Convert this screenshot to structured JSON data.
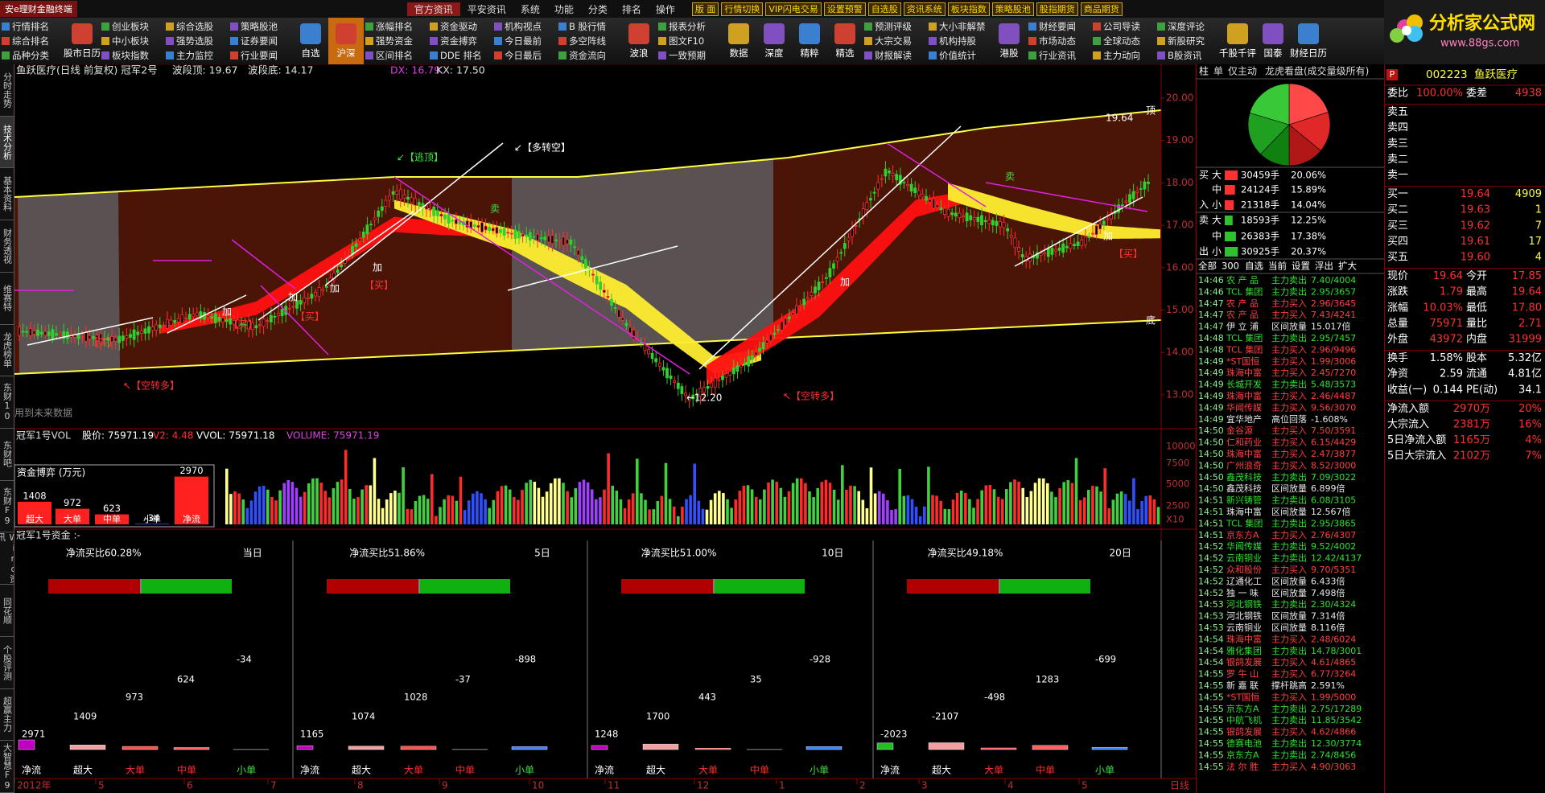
{
  "title_bar": {
    "app": "安e理财金融终端",
    "menu": [
      "官方资讯",
      "平安资讯",
      "系统",
      "功能",
      "分类",
      "排名",
      "操作"
    ],
    "buttons": [
      "版 面",
      "行情切换",
      "VIP闪电交易",
      "设置预警",
      "自选股",
      "资讯系统",
      "板块指数",
      "策略股池",
      "股指期货",
      "商品期货"
    ]
  },
  "logo": {
    "name": "分析家公式网",
    "url": "www.88gs.com"
  },
  "toolbar": [
    [
      "行情排名",
      "综合排名",
      "品种分类"
    ],
    "股市日历",
    [
      "创业板块",
      "中小板块",
      "板块指数"
    ],
    [
      "综合选股",
      "强势选股",
      "主力监控"
    ],
    [
      "策略股池",
      "证券要闻",
      "行业要闻"
    ],
    "自选",
    "沪深",
    [
      "涨幅排名",
      "强势资金",
      "区间排名"
    ],
    [
      "资金驱动",
      "资金搏弈",
      "DDE 排名"
    ],
    [
      "机构视点",
      "今日最前",
      "今日最后"
    ],
    [
      "B 股行情",
      "多空阵线",
      "资金流向"
    ],
    "波浪",
    [
      "报表分析",
      "图文F10",
      "一致预期"
    ],
    "数据",
    "深度",
    "精粹",
    "精选",
    [
      "预测评级",
      "大宗交易",
      "财报解读"
    ],
    [
      "大小非解禁",
      "机构持股",
      "价值统计"
    ],
    "港股",
    [
      "财经要闻",
      "市场动态",
      "行业资讯"
    ],
    [
      "公司导读",
      "全球动态",
      "主力动向"
    ],
    [
      "深度评论",
      "新股研究",
      "B股资讯"
    ],
    "千股千评",
    "国泰",
    "财经日历"
  ],
  "left_tabs": [
    "分时走势",
    "技术分析",
    "基本资料",
    "财务透视",
    "维赛特",
    "龙虎榜单",
    "东财10",
    "东财吧",
    "东财F9",
    "Wind资讯",
    "同花顺",
    "个股评测",
    "超赢主力",
    "大智慧F9"
  ],
  "price_chart": {
    "title": "鱼跃医疗(日线 前复权) 冠军2号",
    "band_top": "波段顶: 19.67",
    "band_bottom": "波段底: 14.17",
    "dx": "DX: 16.79",
    "kx": "KX: 17.50",
    "axis": [
      "20.00",
      "19.00",
      "18.00",
      "17.00",
      "16.00",
      "15.00",
      "14.00",
      "13.00"
    ],
    "annotations": [
      "↙【逃顶】",
      "↙【多转空】",
      "↖【空转多】",
      "↖【空转多】",
      "←12.20",
      "用到未来数据",
      "19.64",
      "顶",
      "底",
      "卖",
      "卖",
      "【买】",
      "【买】",
      "【买】",
      "【买】",
      "【买】",
      "加",
      "加",
      "加",
      "加",
      "加",
      "加"
    ]
  },
  "volume_panel": {
    "title": "冠军1号VOL",
    "items": [
      "股价: 75971.19",
      "V2: 4.48",
      "VVOL: 75971.18",
      "VOLUME: 75971.19"
    ],
    "axis": [
      "10000",
      "7500",
      "5000",
      "2500",
      "X10"
    ]
  },
  "fund_box": {
    "title": "资金博弈 (万元)",
    "categories": [
      "超大",
      "大单",
      "中单",
      "小单",
      "净流"
    ],
    "values": [
      1408,
      972,
      623,
      -34,
      2970
    ]
  },
  "fund_panel": {
    "title": "冠军1号资金 :-",
    "categories": [
      "净流",
      "超大",
      "大单",
      "中单",
      "小单"
    ],
    "panels": [
      {
        "ratio": "净流买比60.28%",
        "period": "当日",
        "values": [
          2971,
          1409,
          973,
          624,
          -34
        ]
      },
      {
        "ratio": "净流买比51.86%",
        "period": "5日",
        "values": [
          1165,
          1074,
          1028,
          -37,
          -898
        ]
      },
      {
        "ratio": "净流买比51.00%",
        "period": "10日",
        "values": [
          1248,
          1700,
          443,
          35,
          -928
        ]
      },
      {
        "ratio": "净流买比49.18%",
        "period": "20日",
        "values": [
          -2023,
          -2107,
          -498,
          1283,
          -699
        ]
      }
    ]
  },
  "date_axis": [
    "2012年",
    "5",
    "6",
    "7",
    "8",
    "9",
    "10",
    "11",
    "12",
    "1",
    "2",
    "3",
    "4",
    "5",
    "日线"
  ],
  "flow_panel": {
    "tabs": [
      "柱",
      "单",
      "仅主动",
      "龙虎看盘(成交量级所有)"
    ],
    "buy_label": [
      "买",
      "入"
    ],
    "sell_label": [
      "卖",
      "出"
    ],
    "buy": {
      "sizes": [
        "大",
        "中",
        "小"
      ],
      "vols": [
        "30459手",
        "24124手",
        "21318手"
      ],
      "values": [
        20.06,
        15.89,
        14.04
      ],
      "value_labels": [
        "20.06%",
        "15.89%",
        "14.04%"
      ]
    },
    "sell": {
      "sizes": [
        "大",
        "中",
        "小"
      ],
      "vols": [
        "18593手",
        "26383手",
        "30925手"
      ],
      "values": [
        12.25,
        17.38,
        20.37
      ],
      "value_labels": [
        "12.25%",
        "17.38%",
        "20.37%"
      ]
    },
    "list_tabs": [
      "全部",
      "300",
      "自选",
      "当前",
      "设置",
      "浮出",
      "扩大"
    ],
    "ticks": [
      {
        "t": "14:46",
        "n": "农 产 品",
        "k": "主力卖出",
        "d": "7.40/4004",
        "c": "#30e030"
      },
      {
        "t": "14:46",
        "n": "TCL 集团",
        "k": "主力卖出",
        "d": "2.95/3657",
        "c": "#30e030"
      },
      {
        "t": "14:47",
        "n": "农 产 品",
        "k": "主力买入",
        "d": "2.96/3645",
        "c": "#ff4040"
      },
      {
        "t": "14:47",
        "n": "农 产 品",
        "k": "主力买入",
        "d": "7.43/4241",
        "c": "#ff4040"
      },
      {
        "t": "14:47",
        "n": "伊 立 浦",
        "k": "区间放量",
        "d": "15.017倍",
        "c": "#e8e8e8"
      },
      {
        "t": "14:48",
        "n": "TCL 集团",
        "k": "主力卖出",
        "d": "2.95/7457",
        "c": "#30e030"
      },
      {
        "t": "14:48",
        "n": "TCL 集团",
        "k": "主力买入",
        "d": "2.96/9496",
        "c": "#ff4040"
      },
      {
        "t": "14:49",
        "n": "*ST国恒",
        "k": "主力买入",
        "d": "1.99/3006",
        "c": "#ff4040"
      },
      {
        "t": "14:49",
        "n": "珠海中富",
        "k": "主力买入",
        "d": "2.45/7270",
        "c": "#ff4040"
      },
      {
        "t": "14:49",
        "n": "长城开发",
        "k": "主力卖出",
        "d": "5.48/3573",
        "c": "#30e030"
      },
      {
        "t": "14:49",
        "n": "珠海中富",
        "k": "主力买入",
        "d": "2.46/4487",
        "c": "#ff4040"
      },
      {
        "t": "14:49",
        "n": "华闻传媒",
        "k": "主力买入",
        "d": "9.56/3070",
        "c": "#ff4040"
      },
      {
        "t": "14:49",
        "n": "宜华地产",
        "k": "高位回落",
        "d": "-1.608%",
        "c": "#e8e8e8"
      },
      {
        "t": "14:50",
        "n": "金谷源",
        "k": "主力买入",
        "d": "7.50/3591",
        "c": "#ff4040"
      },
      {
        "t": "14:50",
        "n": "仁和药业",
        "k": "主力买入",
        "d": "6.15/4429",
        "c": "#ff4040"
      },
      {
        "t": "14:50",
        "n": "珠海中富",
        "k": "主力买入",
        "d": "2.47/3877",
        "c": "#ff4040"
      },
      {
        "t": "14:50",
        "n": "广州浪奇",
        "k": "主力买入",
        "d": "8.52/3000",
        "c": "#ff4040"
      },
      {
        "t": "14:50",
        "n": "鑫茂科技",
        "k": "主力卖出",
        "d": "7.09/3022",
        "c": "#30e030"
      },
      {
        "t": "14:50",
        "n": "鑫茂科技",
        "k": "区间放量",
        "d": "6.899倍",
        "c": "#e8e8e8"
      },
      {
        "t": "14:51",
        "n": "新兴铸管",
        "k": "主力卖出",
        "d": "6.08/3105",
        "c": "#30e030"
      },
      {
        "t": "14:51",
        "n": "珠海中富",
        "k": "区间放量",
        "d": "12.567倍",
        "c": "#e8e8e8"
      },
      {
        "t": "14:51",
        "n": "TCL 集团",
        "k": "主力卖出",
        "d": "2.95/3865",
        "c": "#30e030"
      },
      {
        "t": "14:51",
        "n": "京东方A",
        "k": "主力买入",
        "d": "2.76/4307",
        "c": "#ff4040"
      },
      {
        "t": "14:52",
        "n": "华闻传媒",
        "k": "主力卖出",
        "d": "9.52/4002",
        "c": "#30e030"
      },
      {
        "t": "14:52",
        "n": "云南铜业",
        "k": "主力卖出",
        "d": "12.42/4137",
        "c": "#30e030"
      },
      {
        "t": "14:52",
        "n": "众和股份",
        "k": "主力买入",
        "d": "9.70/5351",
        "c": "#ff4040"
      },
      {
        "t": "14:52",
        "n": "辽通化工",
        "k": "区间放量",
        "d": "6.433倍",
        "c": "#e8e8e8"
      },
      {
        "t": "14:52",
        "n": "独 一 味",
        "k": "区间放量",
        "d": "7.498倍",
        "c": "#e8e8e8"
      },
      {
        "t": "14:53",
        "n": "河北钢铁",
        "k": "主力卖出",
        "d": "2.30/4324",
        "c": "#30e030"
      },
      {
        "t": "14:53",
        "n": "河北钢铁",
        "k": "区间放量",
        "d": "7.314倍",
        "c": "#e8e8e8"
      },
      {
        "t": "14:53",
        "n": "云南铜业",
        "k": "区间放量",
        "d": "8.116倍",
        "c": "#e8e8e8"
      },
      {
        "t": "14:54",
        "n": "珠海中富",
        "k": "主力买入",
        "d": "2.48/6024",
        "c": "#ff4040"
      },
      {
        "t": "14:54",
        "n": "雅化集团",
        "k": "主力卖出",
        "d": "14.78/3001",
        "c": "#30e030"
      },
      {
        "t": "14:54",
        "n": "银鸽发展",
        "k": "主力买入",
        "d": "4.61/4865",
        "c": "#ff4040"
      },
      {
        "t": "14:55",
        "n": "罗 牛 山",
        "k": "主力买入",
        "d": "6.77/3264",
        "c": "#ff4040"
      },
      {
        "t": "14:55",
        "n": "新 嘉 联",
        "k": "撑杆跳高",
        "d": "2.591%",
        "c": "#e8e8e8"
      },
      {
        "t": "14:55",
        "n": "*ST国恒",
        "k": "主力买入",
        "d": "1.99/5000",
        "c": "#ff4040"
      },
      {
        "t": "14:55",
        "n": "京东方A",
        "k": "主力卖出",
        "d": "2.75/17289",
        "c": "#30e030"
      },
      {
        "t": "14:55",
        "n": "中航飞机",
        "k": "主力卖出",
        "d": "11.85/3542",
        "c": "#30e030"
      },
      {
        "t": "14:55",
        "n": "银鸽发展",
        "k": "主力买入",
        "d": "4.62/4866",
        "c": "#ff4040"
      },
      {
        "t": "14:55",
        "n": "德赛电池",
        "k": "主力卖出",
        "d": "12.30/3774",
        "c": "#30e030"
      },
      {
        "t": "14:55",
        "n": "京东方A",
        "k": "主力卖出",
        "d": "2.74/8456",
        "c": "#30e030"
      },
      {
        "t": "14:55",
        "n": "法 尔 胜",
        "k": "主力买入",
        "d": "4.90/3063",
        "c": "#ff4040"
      }
    ]
  },
  "quote": {
    "tag": "P",
    "code": "002223",
    "name": "鱼跃医疗",
    "sections": [
      {
        "color": "#ff3030",
        "rows": [
          [
            "委比",
            "100.00%",
            "委差",
            "4938"
          ]
        ]
      },
      {
        "color": "#ff3030",
        "rows": [
          [
            "卖五"
          ],
          [
            "卖四"
          ],
          [
            "卖三"
          ],
          [
            "卖二"
          ],
          [
            "卖一"
          ]
        ]
      },
      {
        "color": "#ff3030",
        "rows": [
          [
            "买一",
            "19.64",
            "4909"
          ],
          [
            "买二",
            "19.63",
            "1"
          ],
          [
            "买三",
            "19.62",
            "7"
          ],
          [
            "买四",
            "19.61",
            "17"
          ],
          [
            "买五",
            "19.60",
            "4"
          ]
        ]
      },
      {
        "color": "#ff3030",
        "rows": [
          [
            "现价",
            "19.64",
            "今开",
            "17.85"
          ],
          [
            "涨跌",
            "1.79",
            "最高",
            "19.64"
          ],
          [
            "涨幅",
            "10.03%",
            "最低",
            "17.80"
          ],
          [
            "总量",
            "75971",
            "量比",
            "2.71"
          ],
          [
            "外盘",
            "43972",
            "内盘",
            "31999"
          ]
        ]
      },
      {
        "color": "#ffffff",
        "rows": [
          [
            "换手",
            "1.58%",
            "股本",
            "5.32亿"
          ],
          [
            "净资",
            "2.59",
            "流通",
            "4.81亿"
          ],
          [
            "收益(一)",
            "0.144",
            "PE(动)",
            "34.1"
          ]
        ]
      },
      {
        "color": "#ff3030",
        "rows": [
          [
            "净流入额",
            "2970万",
            "20%"
          ],
          [
            "大宗流入",
            "2381万",
            "16%"
          ],
          [
            "5日净流入额",
            "1165万",
            "4%"
          ],
          [
            "5日大宗流入",
            "2102万",
            "7%"
          ]
        ]
      }
    ]
  }
}
